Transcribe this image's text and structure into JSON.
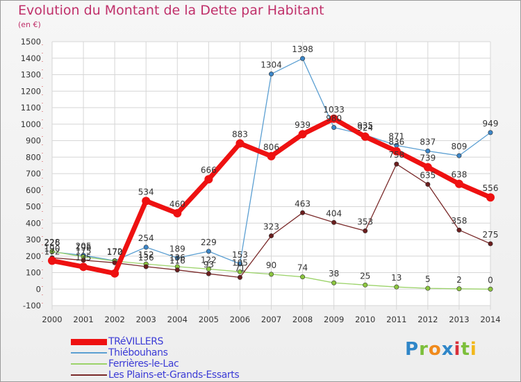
{
  "title": "Evolution du Montant de la Dette par Habitant",
  "subtitle": "(en €)",
  "logo": {
    "letters": [
      {
        "ch": "P",
        "color": "#2f86c8"
      },
      {
        "ch": "r",
        "color": "#7cbf3a"
      },
      {
        "ch": "o",
        "color": "#f08a1c"
      },
      {
        "ch": "x",
        "color": "#2f86c8"
      },
      {
        "ch": "i",
        "color": "#d8303a"
      },
      {
        "ch": "t",
        "color": "#7cbf3a"
      },
      {
        "ch": "i",
        "color": "#f2b81c"
      }
    ]
  },
  "chart_data": {
    "type": "line",
    "title": "Evolution du Montant de la Dette par Habitant",
    "ylabel": "(en €)",
    "x": [
      "2000",
      "2001",
      "2002",
      "2003",
      "2004",
      "2005",
      "2006",
      "2007",
      "2008",
      "2009",
      "2010",
      "2011",
      "2012",
      "2013",
      "2014"
    ],
    "yticks": [
      -100,
      0,
      100,
      200,
      300,
      400,
      500,
      600,
      700,
      800,
      900,
      1000,
      1100,
      1200,
      1300,
      1400,
      1500
    ],
    "ylim": [
      -100,
      1500
    ],
    "grid": true,
    "legend_position": "bottom-left",
    "series": [
      {
        "name": "Thiébouhans",
        "color": "#5b9fd2",
        "dot": "#3c86c8",
        "width": 1.3,
        "r": 3.2,
        "values": [
          226,
          205,
          172,
          254,
          189,
          229,
          153,
          1304,
          1398,
          980,
          935,
          871,
          837,
          809,
          949
        ],
        "labels": [
          "226",
          "205",
          "172",
          "254",
          "189",
          "229",
          "153",
          "1304",
          "1398",
          "980",
          "935",
          "871",
          "837",
          "809",
          "949"
        ]
      },
      {
        "name": "Ferrières-le-Lac",
        "color": "#9cd36a",
        "dot": "#8cc63f",
        "width": 1.3,
        "r": 3.2,
        "values": [
          228,
          196,
          170,
          152,
          136,
          122,
          105,
          90,
          74,
          38,
          25,
          13,
          5,
          2,
          0
        ],
        "labels": [
          "228",
          "196",
          "170",
          "152",
          "136",
          "122",
          "105",
          "90",
          "74",
          "38",
          "25",
          "13",
          "5",
          "2",
          "0"
        ]
      },
      {
        "name": "Les Plains-et-Grands-Essarts",
        "color": "#7a2a2a",
        "dot": "#6b1e1e",
        "width": 1.3,
        "r": 3.2,
        "values": [
          190,
          175,
          160,
          136,
          116,
          93,
          71,
          323,
          463,
          404,
          353,
          758,
          635,
          358,
          275
        ],
        "labels": [
          "190",
          "175",
          "",
          "136",
          "116",
          "93",
          "71",
          "323",
          "463",
          "404",
          "353",
          "758",
          "635",
          "358",
          "275"
        ]
      },
      {
        "name": "TRéVILLERS",
        "color": "#ee1111",
        "dot": "#ee1111",
        "width": 7,
        "r": 6,
        "values": [
          172,
          135,
          95,
          534,
          460,
          666,
          883,
          806,
          939,
          1033,
          924,
          836,
          739,
          638,
          556
        ],
        "labels": [
          "172",
          "135",
          "",
          "534",
          "460",
          "666",
          "883",
          "806",
          "939",
          "1033",
          "924",
          "836",
          "739",
          "638",
          "556"
        ]
      }
    ]
  }
}
